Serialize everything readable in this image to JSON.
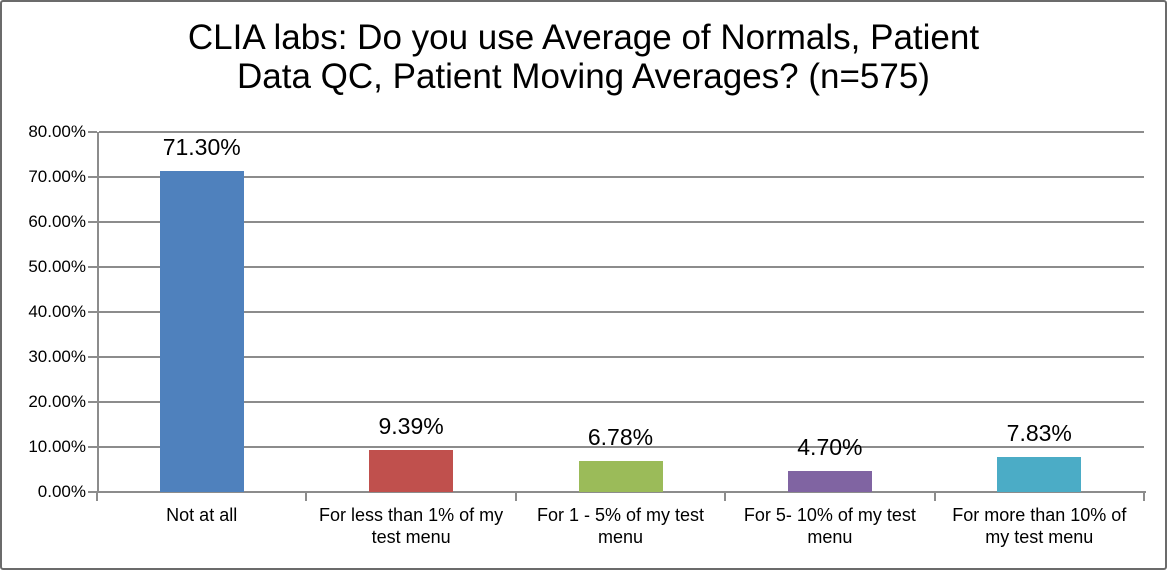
{
  "chart_data": {
    "type": "bar",
    "title": "CLIA labs: Do you use Average of Normals, Patient Data QC, Patient Moving Averages? (n=575)",
    "categories": [
      "Not at all",
      "For less than 1% of my test menu",
      "For 1 - 5% of my test menu",
      "For 5- 10% of my test menu",
      "For more than 10% of my test menu"
    ],
    "values": [
      71.3,
      9.39,
      6.78,
      4.7,
      7.83
    ],
    "value_labels": [
      "71.30%",
      "9.39%",
      "6.78%",
      "4.70%",
      "7.83%"
    ],
    "bar_colors": [
      "#4F81BD",
      "#C0504D",
      "#9BBB59",
      "#8064A2",
      "#4BACC6"
    ],
    "xlabel": "",
    "ylabel": "",
    "ylim": [
      0,
      80
    ],
    "yticks": [
      {
        "value": 0,
        "label": "0.00%"
      },
      {
        "value": 10,
        "label": "10.00%"
      },
      {
        "value": 20,
        "label": "20.00%"
      },
      {
        "value": 30,
        "label": "30.00%"
      },
      {
        "value": 40,
        "label": "40.00%"
      },
      {
        "value": 50,
        "label": "50.00%"
      },
      {
        "value": 60,
        "label": "60.00%"
      },
      {
        "value": 70,
        "label": "70.00%"
      },
      {
        "value": 80,
        "label": "80.00%"
      }
    ],
    "grid": true,
    "legend": "none"
  },
  "theme": {
    "background": "#FFFFFF",
    "border_color": "#6B6B6B",
    "grid_color": "#8C8C8C",
    "axis_color": "#8C8C8C",
    "text_color": "#000000"
  }
}
